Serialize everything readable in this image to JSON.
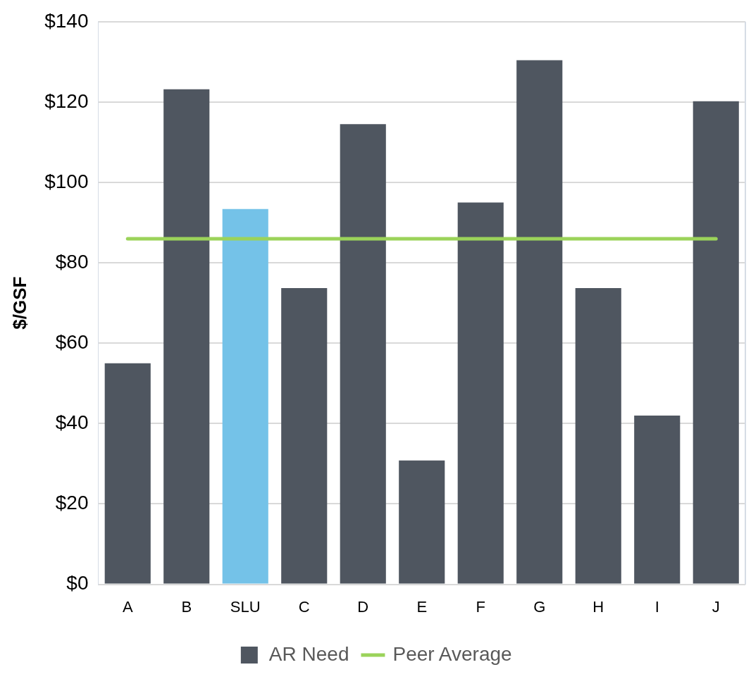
{
  "chart_data": {
    "type": "bar",
    "ylabel": "$/GSF",
    "categories": [
      "A",
      "B",
      "SLU",
      "C",
      "D",
      "E",
      "F",
      "G",
      "H",
      "I",
      "J"
    ],
    "series": [
      {
        "name": "AR Need",
        "color": "#4f5660",
        "colors": [
          "#4f5660",
          "#4f5660",
          "#74c2e8",
          "#4f5660",
          "#4f5660",
          "#4f5660",
          "#4f5660",
          "#4f5660",
          "#4f5660",
          "#4f5660",
          "#4f5660"
        ],
        "values": [
          55,
          123.2,
          93.4,
          73.7,
          114.5,
          30.8,
          95,
          130.4,
          73.7,
          42,
          120.2
        ]
      },
      {
        "name": "Peer Average",
        "type": "line",
        "color": "#9bd35a",
        "marker": "none",
        "values": [
          86,
          86,
          86,
          86,
          86,
          86,
          86,
          86,
          86,
          86,
          86
        ]
      }
    ],
    "ylim": [
      0,
      140
    ],
    "yticks": [
      {
        "value": 0,
        "label": "$0"
      },
      {
        "value": 20,
        "label": "$20"
      },
      {
        "value": 40,
        "label": "$40"
      },
      {
        "value": 60,
        "label": "$60"
      },
      {
        "value": 80,
        "label": "$80"
      },
      {
        "value": 100,
        "label": "$100"
      },
      {
        "value": 120,
        "label": "$120"
      },
      {
        "value": 140,
        "label": "$140"
      }
    ],
    "grid": "y",
    "legend": "bottom"
  }
}
